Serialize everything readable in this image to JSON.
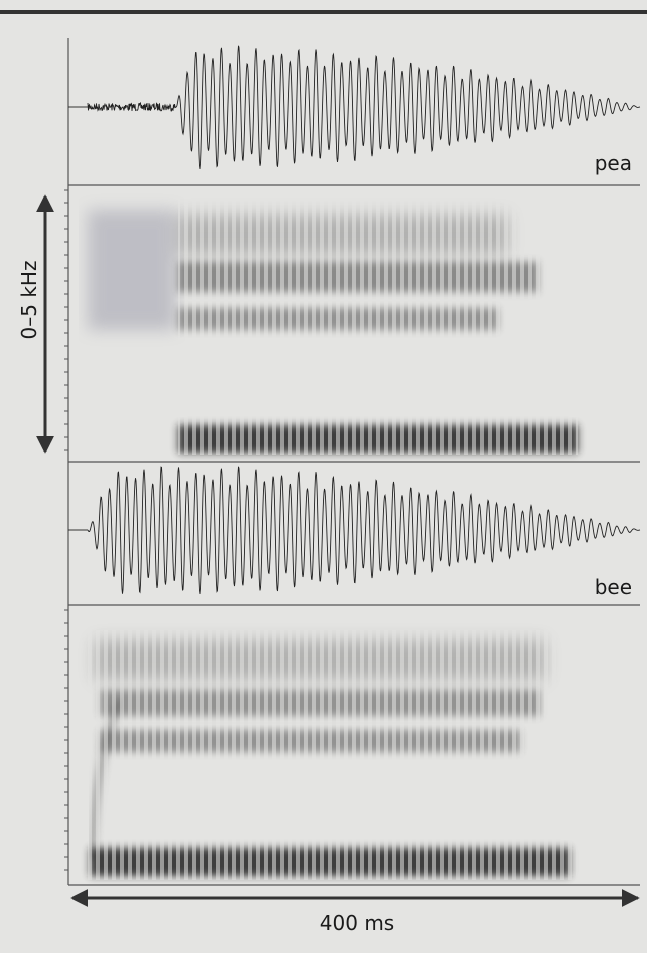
{
  "panels": {
    "pea": {
      "label": "pea"
    },
    "bee": {
      "label": "bee"
    }
  },
  "frequency_axis": {
    "label": "0–5 kHz"
  },
  "time_axis": {
    "label": "400 ms"
  }
}
